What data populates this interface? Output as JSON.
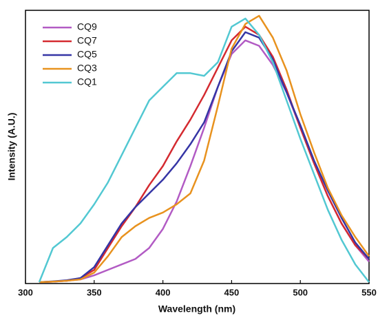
{
  "chart_data": {
    "type": "line",
    "xlabel": "Wavelength (nm)",
    "ylabel": "Intensity (A.U.)",
    "x": [
      310,
      320,
      330,
      340,
      350,
      360,
      370,
      380,
      390,
      400,
      410,
      420,
      430,
      440,
      450,
      460,
      470,
      480,
      490,
      500,
      510,
      520,
      530,
      540,
      550
    ],
    "xlim": [
      300,
      550
    ],
    "xticks": [
      300,
      350,
      400,
      450,
      500,
      550
    ],
    "ylim": [
      0,
      1
    ],
    "series": [
      {
        "name": "CQ9",
        "color": "#b25bc4",
        "values": [
          0.005,
          0.007,
          0.01,
          0.015,
          0.03,
          0.05,
          0.07,
          0.09,
          0.13,
          0.2,
          0.3,
          0.43,
          0.57,
          0.72,
          0.84,
          0.89,
          0.87,
          0.8,
          0.7,
          0.57,
          0.44,
          0.32,
          0.22,
          0.14,
          0.08
        ]
      },
      {
        "name": "CQ7",
        "color": "#d42a30",
        "values": [
          0.005,
          0.007,
          0.01,
          0.02,
          0.05,
          0.13,
          0.21,
          0.28,
          0.36,
          0.43,
          0.52,
          0.6,
          0.69,
          0.79,
          0.89,
          0.94,
          0.91,
          0.83,
          0.71,
          0.57,
          0.44,
          0.32,
          0.22,
          0.14,
          0.09
        ]
      },
      {
        "name": "CQ5",
        "color": "#3535a5",
        "values": [
          0.005,
          0.008,
          0.012,
          0.02,
          0.06,
          0.14,
          0.22,
          0.28,
          0.33,
          0.38,
          0.44,
          0.51,
          0.59,
          0.72,
          0.85,
          0.92,
          0.9,
          0.82,
          0.7,
          0.58,
          0.45,
          0.34,
          0.24,
          0.15,
          0.09
        ]
      },
      {
        "name": "CQ3",
        "color": "#e8921e",
        "values": [
          0.005,
          0.007,
          0.01,
          0.015,
          0.04,
          0.1,
          0.17,
          0.21,
          0.24,
          0.26,
          0.29,
          0.33,
          0.45,
          0.65,
          0.86,
          0.95,
          0.98,
          0.9,
          0.78,
          0.62,
          0.48,
          0.35,
          0.25,
          0.17,
          0.1
        ]
      },
      {
        "name": "CQ1",
        "color": "#52c8d2",
        "values": [
          0.005,
          0.13,
          0.17,
          0.22,
          0.29,
          0.37,
          0.47,
          0.57,
          0.67,
          0.72,
          0.77,
          0.77,
          0.76,
          0.81,
          0.94,
          0.97,
          0.91,
          0.81,
          0.67,
          0.53,
          0.4,
          0.27,
          0.16,
          0.07,
          0.005
        ]
      }
    ]
  }
}
